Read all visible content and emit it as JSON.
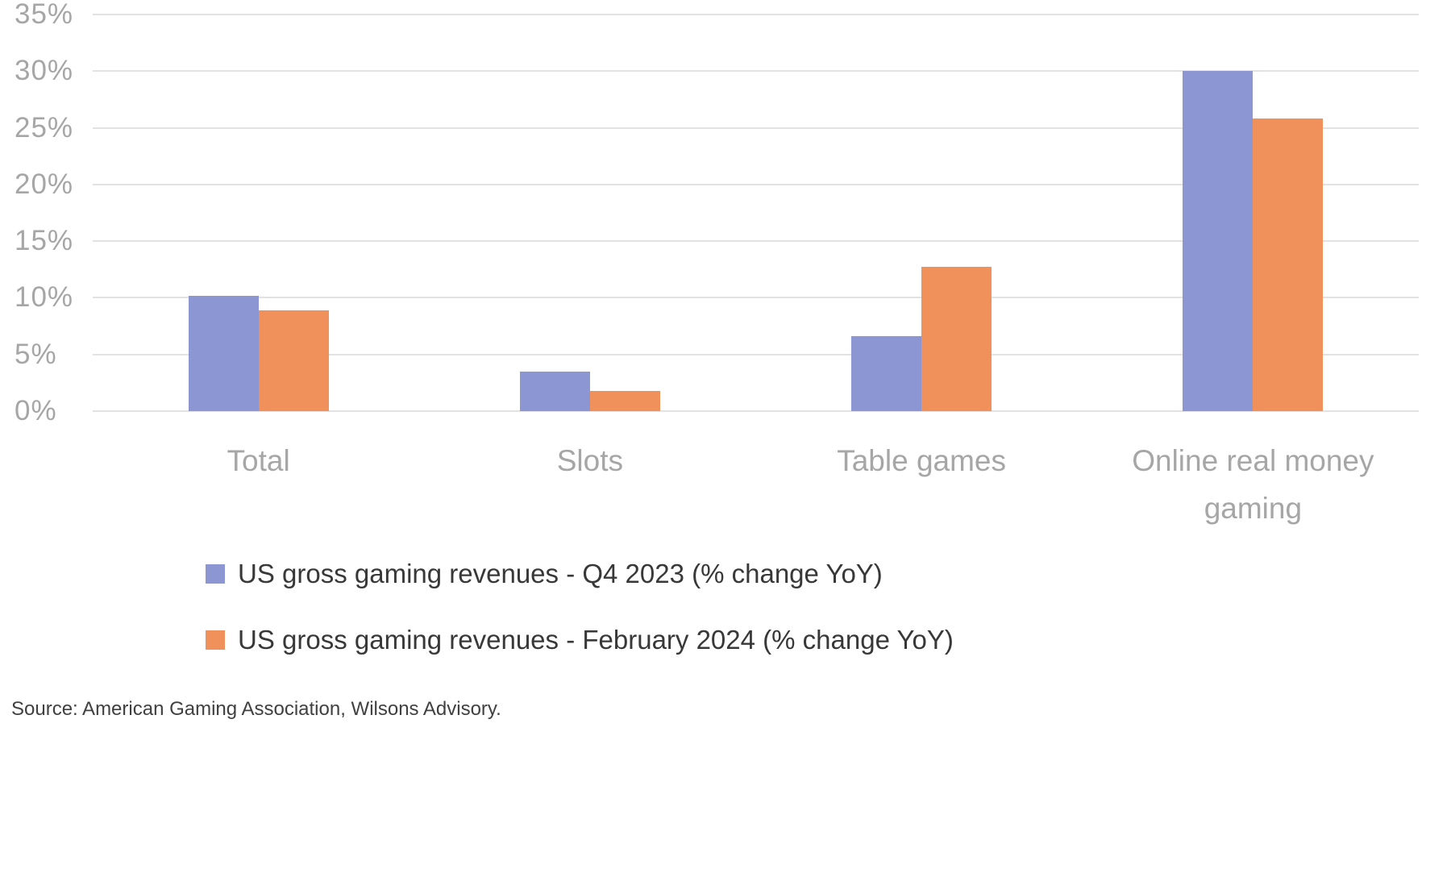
{
  "chart_data": {
    "type": "bar",
    "title": "",
    "categories": [
      "Total",
      "Slots",
      "Table games",
      "Online real money gaming"
    ],
    "series": [
      {
        "name": "US gross gaming revenues - Q4 2023 (% change YoY)",
        "color": "#8C96D2",
        "values": [
          10.2,
          3.5,
          6.6,
          30.0
        ]
      },
      {
        "name": "US gross gaming revenues - February 2024 (% change YoY)",
        "color": "#F0915C",
        "values": [
          8.9,
          1.8,
          12.7,
          25.8
        ]
      }
    ],
    "ylim": [
      0,
      35
    ],
    "ytick_step": 5,
    "ytick_labels": [
      "0%",
      "5%",
      "10%",
      "15%",
      "20%",
      "25%",
      "30%",
      "35%"
    ],
    "grid": true,
    "gridline_color": "#E2E2E2",
    "axis_label_color": "#A6A6A6",
    "legend_position": "bottom-left",
    "legend_text_color": "#383838"
  },
  "source": {
    "text": "Source: American Gaming Association, Wilsons Advisory."
  }
}
